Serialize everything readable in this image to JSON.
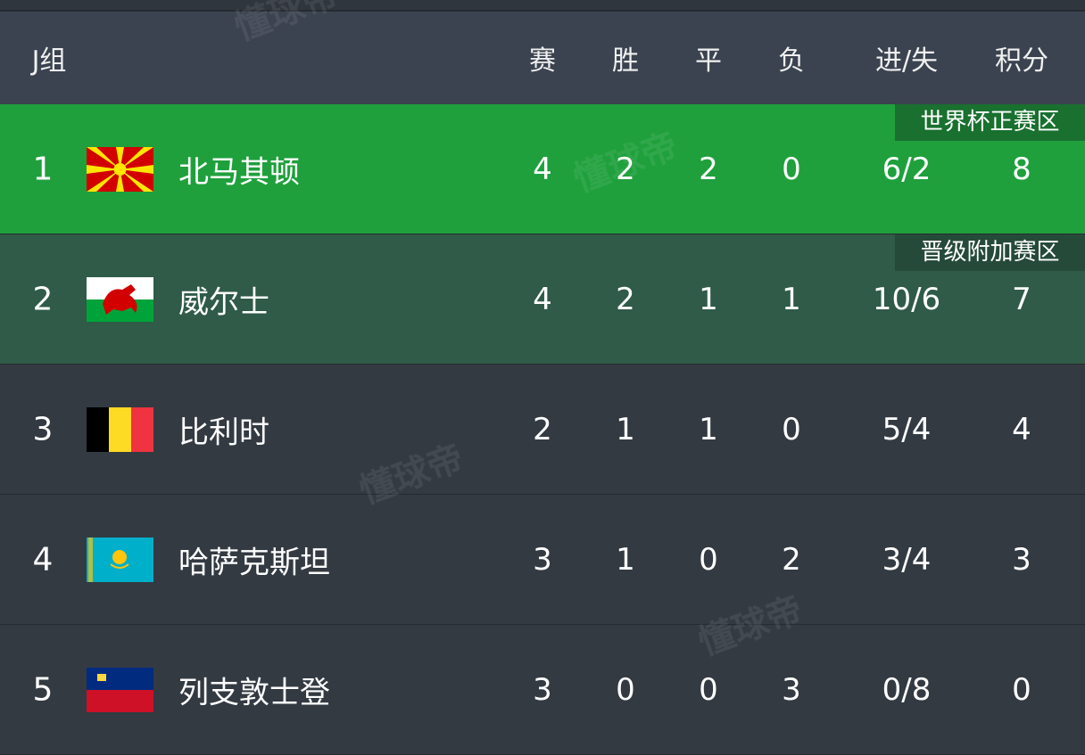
{
  "header": {
    "group": "J组",
    "cols": [
      "赛",
      "胜",
      "平",
      "负",
      "进/失",
      "积分"
    ]
  },
  "colors": {
    "qualify": "#1fa03c",
    "playoff": "#2f5b48",
    "row": "#333a42",
    "header": "#3b4350"
  },
  "watermark": "懂球帝",
  "rows": [
    {
      "rank": "1",
      "flag": "north-macedonia-flag",
      "name": "北马其顿",
      "badge": "世界杯正赛区",
      "vals": [
        "4",
        "2",
        "2",
        "0",
        "6/2",
        "8"
      ]
    },
    {
      "rank": "2",
      "flag": "wales-flag",
      "name": "威尔士",
      "badge": "晋级附加赛区",
      "vals": [
        "4",
        "2",
        "1",
        "1",
        "10/6",
        "7"
      ]
    },
    {
      "rank": "3",
      "flag": "belgium-flag",
      "name": "比利时",
      "vals": [
        "2",
        "1",
        "1",
        "0",
        "5/4",
        "4"
      ]
    },
    {
      "rank": "4",
      "flag": "kazakhstan-flag",
      "name": "哈萨克斯坦",
      "vals": [
        "3",
        "1",
        "0",
        "2",
        "3/4",
        "3"
      ]
    },
    {
      "rank": "5",
      "flag": "liechtenstein-flag",
      "name": "列支敦士登",
      "vals": [
        "3",
        "0",
        "0",
        "3",
        "0/8",
        "0"
      ]
    }
  ]
}
